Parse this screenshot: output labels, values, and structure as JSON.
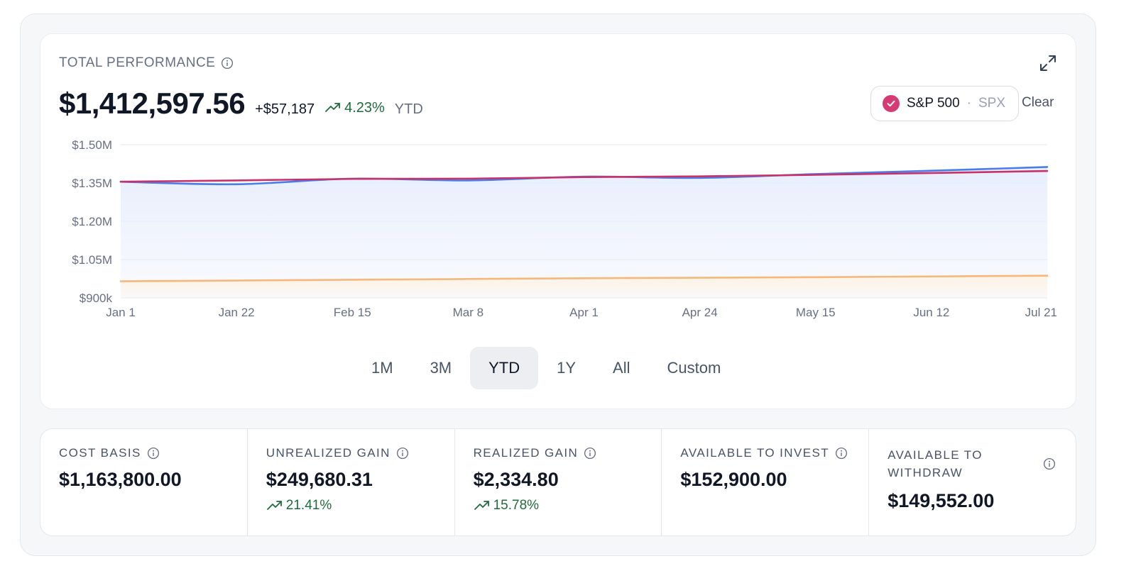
{
  "header": {
    "title": "TOTAL PERFORMANCE",
    "total_value": "$1,412,597.56",
    "change_amount": "+$57,187",
    "change_percent": "4.23%",
    "period": "YTD"
  },
  "benchmark": {
    "name": "S&P 500",
    "separator": "·",
    "ticker": "SPX",
    "clear_label": "Clear",
    "color": "#d63a73"
  },
  "range_selector": {
    "options": [
      "1M",
      "3M",
      "YTD",
      "1Y",
      "All",
      "Custom"
    ],
    "active": "YTD"
  },
  "chart_data": {
    "type": "line",
    "x": [
      "Jan 1",
      "Jan 22",
      "Feb 15",
      "Mar 8",
      "Apr 1",
      "Apr 24",
      "May 15",
      "Jun 12",
      "Jul 21"
    ],
    "y_ticks": [
      "$1.50M",
      "$1.35M",
      "$1.20M",
      "$1.05M",
      "$900k"
    ],
    "ylim": [
      900000,
      1500000
    ],
    "grid": true,
    "series": [
      {
        "name": "",
        "color": "#4a7de8",
        "fill": "#e8eefc",
        "values": [
          1355000,
          1345000,
          1367000,
          1360000,
          1375000,
          1370000,
          1385000,
          1398000,
          1412598
        ]
      },
      {
        "name": "S&P 500",
        "color": "#c8326b",
        "values": [
          1355000,
          1360000,
          1366000,
          1367000,
          1373000,
          1376000,
          1382000,
          1389000,
          1397000
        ]
      },
      {
        "name": "",
        "color": "#f4b87a",
        "fill": "#fdf3e6",
        "values": [
          965000,
          968000,
          971000,
          974000,
          977000,
          979000,
          981000,
          984000,
          987000
        ]
      }
    ]
  },
  "stats": [
    {
      "label": "COST BASIS",
      "value": "$1,163,800.00",
      "change": ""
    },
    {
      "label": "UNREALIZED GAIN",
      "value": "$249,680.31",
      "change": "21.41%"
    },
    {
      "label": "REALIZED GAIN",
      "value": "$2,334.80",
      "change": "15.78%"
    },
    {
      "label": "AVAILABLE TO INVEST",
      "value": "$152,900.00",
      "change": ""
    },
    {
      "label": "AVAILABLE TO WITHDRAW",
      "value": "$149,552.00",
      "change": ""
    }
  ],
  "icons": {
    "info": "info-circle-icon",
    "trend": "trending-up-icon",
    "expand": "expand-icon",
    "check": "check-icon"
  },
  "colors": {
    "positive": "#1f6b3b",
    "benchmark": "#d63a73"
  }
}
